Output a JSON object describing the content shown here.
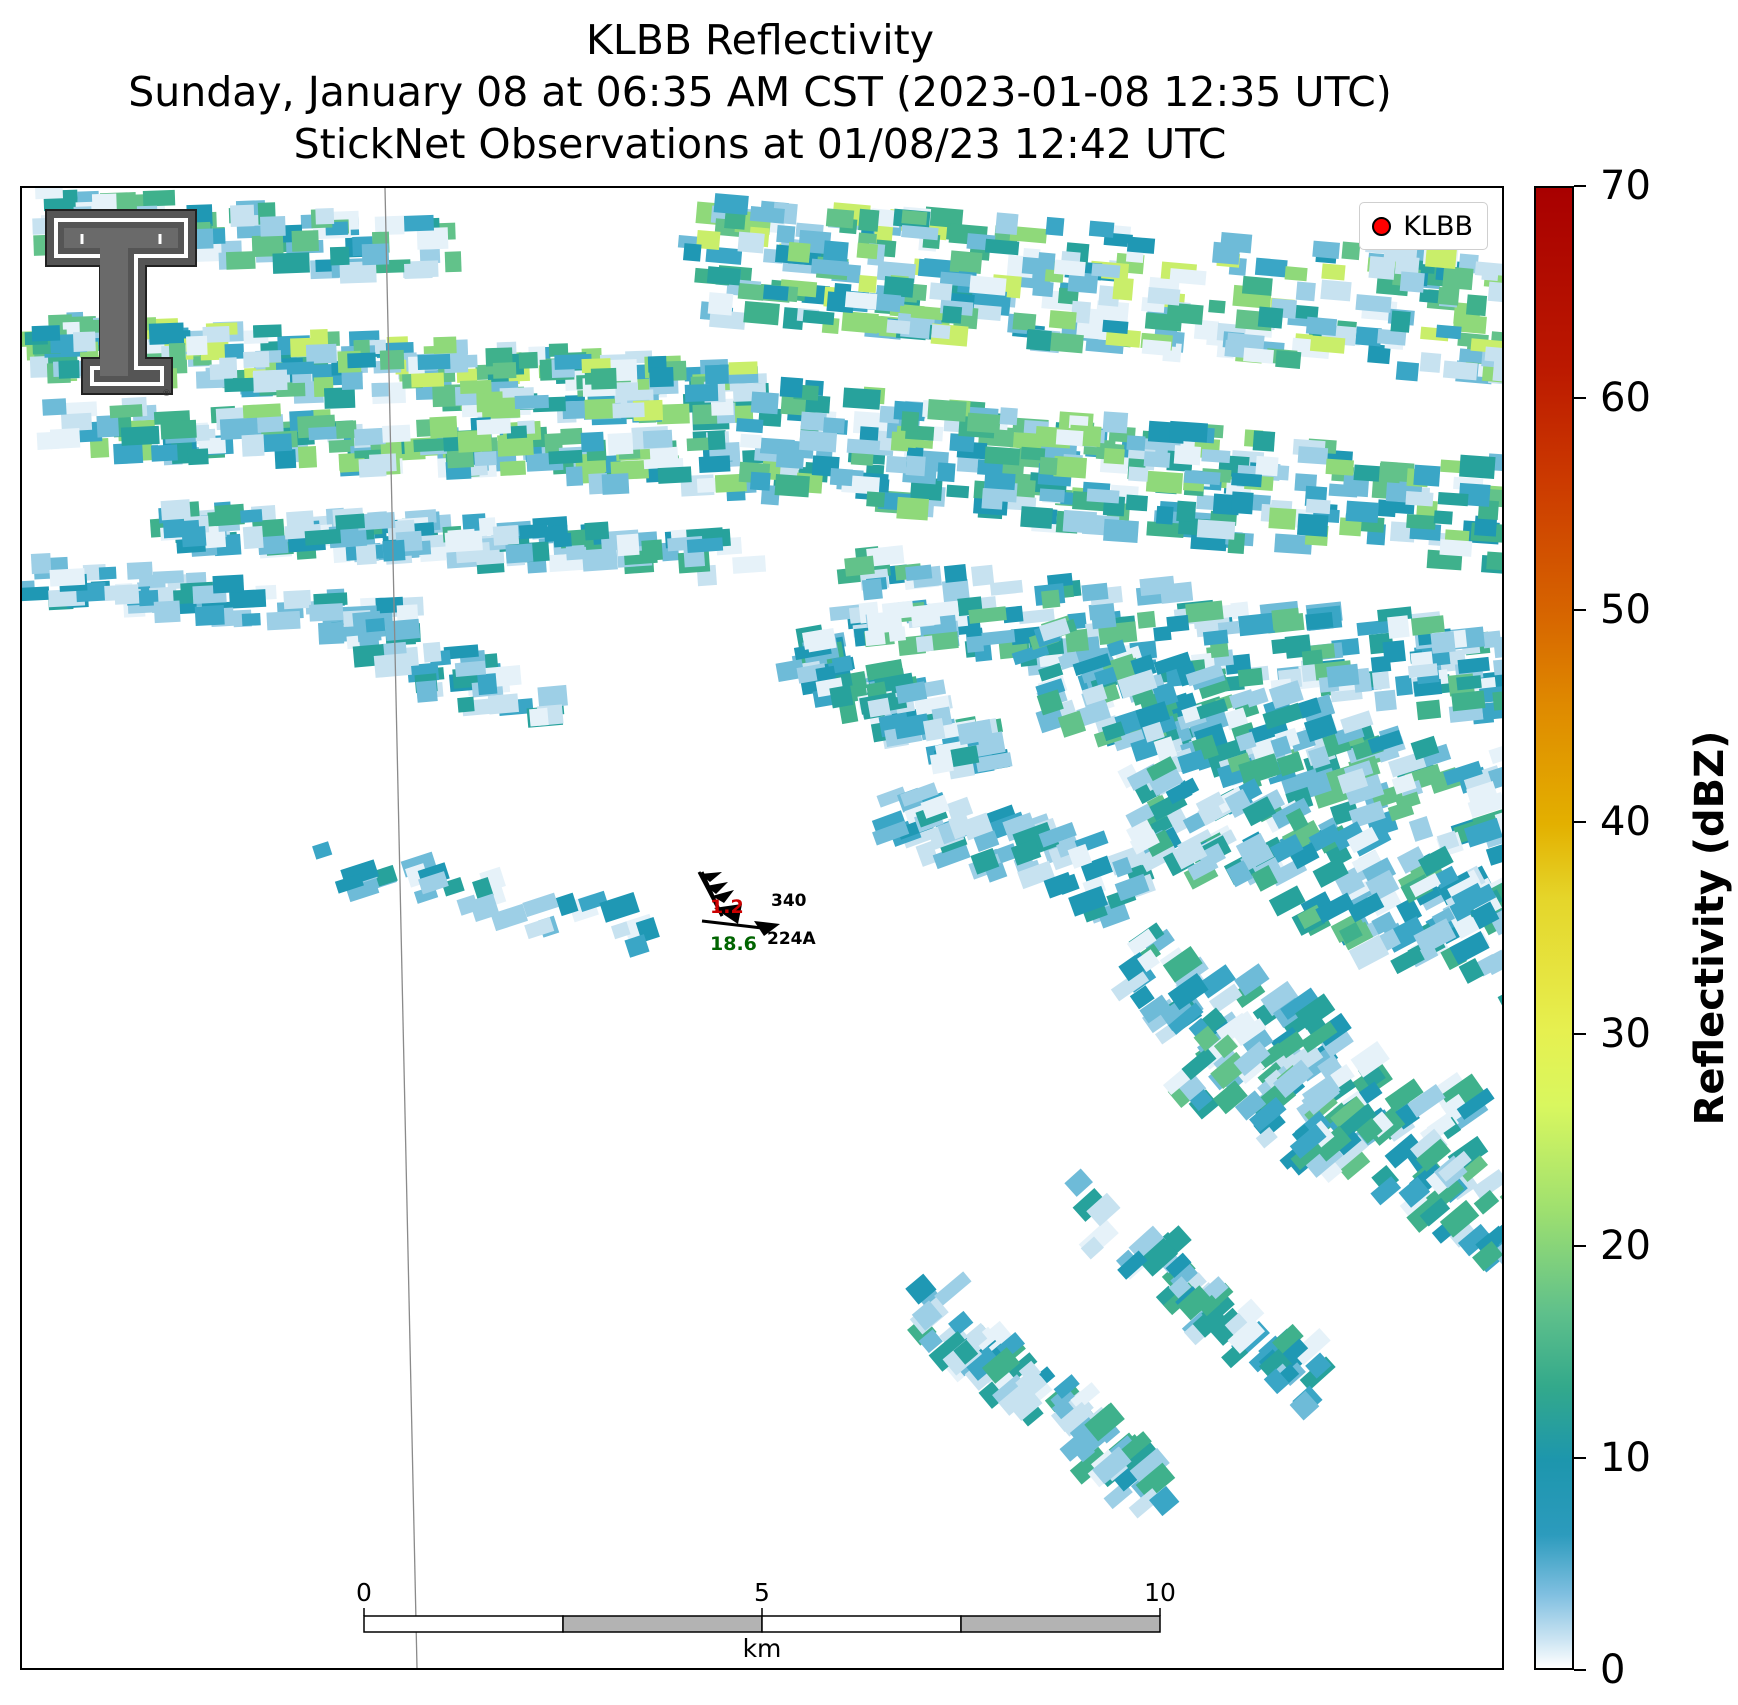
{
  "title": {
    "line1": "KLBB Reflectivity",
    "line2": "Sunday, January 08 at 06:35 AM CST (2023-01-08 12:35 UTC)",
    "line3": "StickNet Observations at 01/08/23 12:42 UTC"
  },
  "legend": {
    "marker_label": "KLBB",
    "marker_color": "#ff0000"
  },
  "station": {
    "id": "224A",
    "id_north": "340",
    "temperature": "1.2",
    "dewpoint": "18.6",
    "temp_color": "#cc0000",
    "dew_color": "#006400"
  },
  "scalebar": {
    "ticks": [
      "0",
      "5",
      "10"
    ],
    "unit": "km"
  },
  "colorbar": {
    "label": "Reflectivity (dBZ)",
    "ticks": [
      "0",
      "10",
      "20",
      "30",
      "40",
      "50",
      "60",
      "70"
    ],
    "min": 0,
    "max": 70
  },
  "logo": {
    "name": "texas-tech-double-t-logo",
    "mark": "®"
  }
}
